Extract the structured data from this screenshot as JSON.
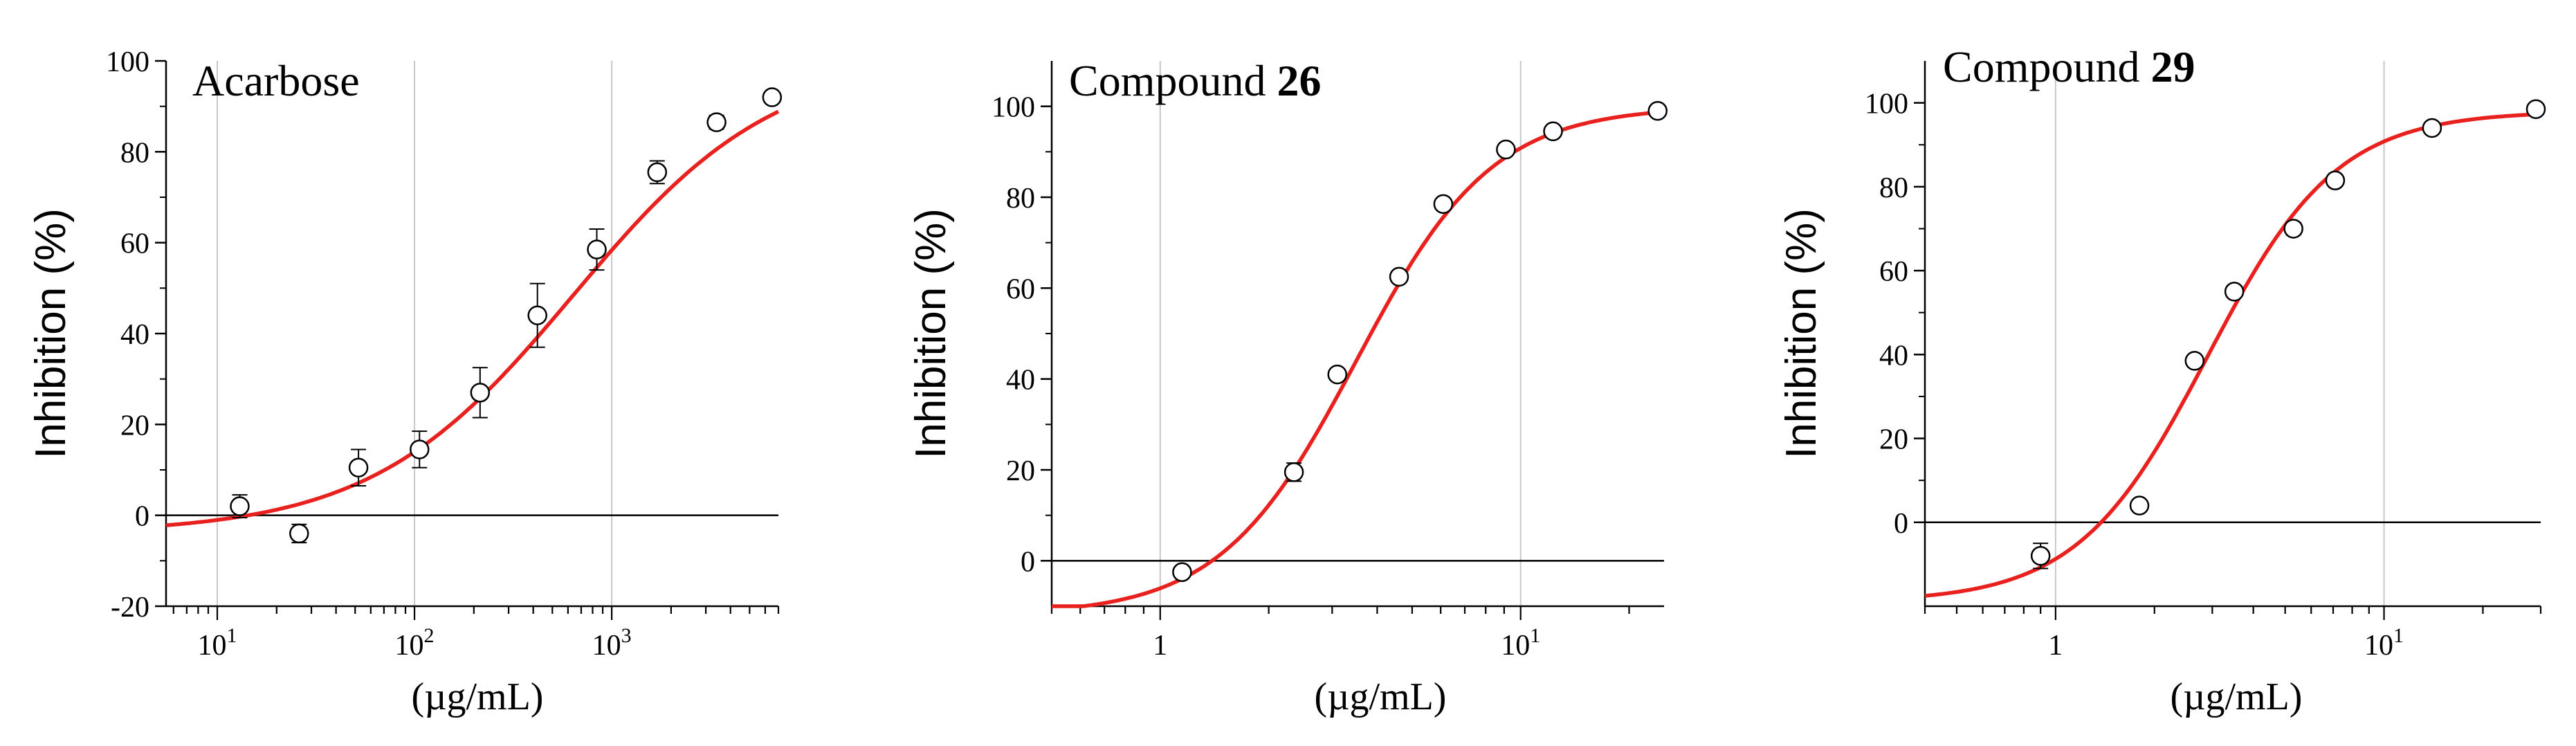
{
  "chart_data": [
    {
      "type": "scatter",
      "title": "Acarbose",
      "title_bold": "",
      "xlabel": "(µg/mL)",
      "ylabel": "Inhibition (%)",
      "xscale": "log",
      "xlim": [
        5.5,
        7000
      ],
      "ylim": [
        -20,
        100
      ],
      "yticks": [
        -20,
        0,
        20,
        40,
        60,
        80,
        100
      ],
      "ytick_labels": [
        "-20",
        "0",
        "20",
        "40",
        "60",
        "80",
        "100"
      ],
      "xticks": [
        10,
        100,
        1000
      ],
      "xtick_labels": [
        {
          "base": "10",
          "exp": "1"
        },
        {
          "base": "10",
          "exp": "2"
        },
        {
          "base": "10",
          "exp": "3"
        }
      ],
      "points": {
        "x": [
          13,
          26,
          52,
          106,
          215,
          420,
          840,
          1700,
          3400,
          6500
        ],
        "y": [
          2,
          -4,
          10.5,
          14.5,
          27,
          44,
          58.5,
          75.5,
          86.5,
          92
        ],
        "err": [
          2.5,
          2,
          4,
          4,
          5.5,
          7,
          4.5,
          2.5,
          1.5,
          0
        ]
      },
      "fit": {
        "bottom": -4,
        "top": 101,
        "ec50": 640,
        "hill": 0.85
      },
      "grid": "vertical",
      "zero_line": true
    },
    {
      "type": "scatter",
      "title": "Compound ",
      "title_bold": "26",
      "xlabel": "(µg/mL)",
      "ylabel": "Inhibition (%)",
      "xscale": "log",
      "xlim": [
        0.5,
        25
      ],
      "ylim": [
        -10,
        110
      ],
      "yticks": [
        0,
        20,
        40,
        60,
        80,
        100
      ],
      "ytick_labels": [
        "0",
        "20",
        "40",
        "60",
        "80",
        "100"
      ],
      "xticks": [
        1,
        10
      ],
      "xtick_labels": [
        {
          "base": "1",
          "exp": ""
        },
        {
          "base": "10",
          "exp": "1"
        }
      ],
      "points": {
        "x": [
          1.15,
          2.35,
          3.1,
          4.6,
          6.1,
          9.1,
          12.3,
          24
        ],
        "y": [
          -2.5,
          19.5,
          41,
          62.5,
          78.5,
          90.5,
          94.5,
          99
        ],
        "err": [
          0,
          2,
          0,
          0,
          0,
          0,
          0,
          0
        ]
      },
      "fit": {
        "bottom": -12,
        "top": 100,
        "ec50": 3.5,
        "hill": 2.3
      },
      "grid": "vertical",
      "zero_line": true
    },
    {
      "type": "scatter",
      "title": "Compound ",
      "title_bold": "29",
      "xlabel": "(µg/mL)",
      "ylabel": "Inhibition (%)",
      "xscale": "log",
      "xlim": [
        0.4,
        30
      ],
      "ylim": [
        -20,
        110
      ],
      "yticks": [
        0,
        20,
        40,
        60,
        80,
        100
      ],
      "ytick_labels": [
        "0",
        "20",
        "40",
        "60",
        "80",
        "100"
      ],
      "xticks": [
        1,
        10
      ],
      "xtick_labels": [
        {
          "base": "1",
          "exp": ""
        },
        {
          "base": "10",
          "exp": "1"
        }
      ],
      "points": {
        "x": [
          0.9,
          1.8,
          2.65,
          3.5,
          5.3,
          7.1,
          14,
          29
        ],
        "y": [
          -8,
          4,
          38.5,
          55,
          70,
          81.5,
          94,
          98.5
        ],
        "err": [
          3,
          1,
          0,
          0,
          1.5,
          0,
          0,
          0
        ]
      },
      "fit": {
        "bottom": -19,
        "top": 98,
        "ec50": 2.9,
        "hill": 2.2
      },
      "grid": "vertical",
      "zero_line": true
    }
  ]
}
